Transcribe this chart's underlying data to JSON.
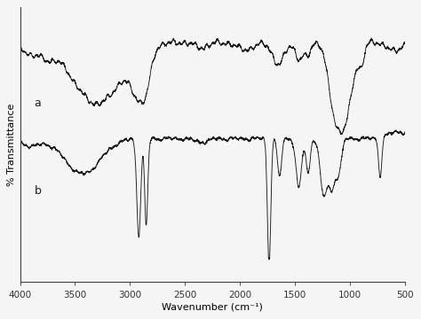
{
  "title": "",
  "xlabel": "Wavenumber (cm⁻¹)",
  "ylabel": "% Transmittance",
  "xlim": [
    4000,
    500
  ],
  "label_a": "a",
  "label_b": "b",
  "background_color": "#f5f5f5",
  "line_color": "#1a1a1a",
  "xticks": [
    4000,
    3500,
    3000,
    2500,
    2000,
    1500,
    1000,
    500
  ],
  "figsize": [
    4.74,
    3.6
  ],
  "dpi": 100
}
